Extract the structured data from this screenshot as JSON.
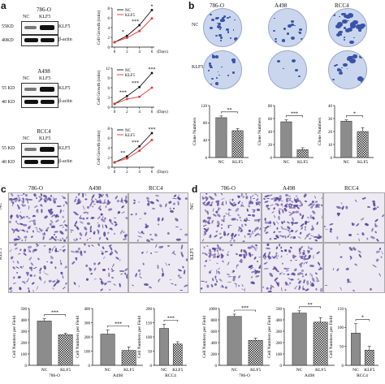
{
  "panels": {
    "a": "a",
    "b": "b",
    "c": "c",
    "d": "d"
  },
  "panel_a": {
    "blots": [
      {
        "title": "786-O",
        "lane1": "NC",
        "lane2": "KLF5",
        "mw_top": "55KD",
        "mw_bot": "40KD",
        "label_top": "KLF5",
        "label_bot": "β-actin"
      },
      {
        "title": "A498",
        "lane1": "NC",
        "lane2": "KLF5",
        "mw_top": "55 KD",
        "mw_bot": "40 KD",
        "label_top": "KLF5",
        "label_bot": "β-actin"
      },
      {
        "title": "RCC4",
        "lane1": "NC",
        "lane2": "KLF5",
        "mw_top": "55 KD",
        "mw_bot": "40 KD",
        "label_top": "KLF5",
        "label_bot": "β-actin"
      }
    ]
  },
  "growth_charts": {
    "ylabel": "Cell Growth (ratio)",
    "xlabel": "(Days)",
    "legend": [
      "NC",
      "KLF5"
    ],
    "x_ticks": [
      "0",
      "2",
      "4",
      "6"
    ]
  },
  "panel_b": {
    "cols": [
      "786-O",
      "A498",
      "RCC4"
    ],
    "rows": [
      "NC",
      "KLF5"
    ],
    "ylabel": "Clone Numbers",
    "xcats": [
      "NC",
      "KLF5"
    ]
  },
  "panel_c": {
    "cols": [
      "786-O",
      "A498",
      "RCC4"
    ],
    "rows": [
      "NC",
      "KLF5"
    ]
  },
  "panel_d": {
    "cols": [
      "786-O",
      "A498",
      "RCC4"
    ],
    "rows": [
      "NC",
      "KLF5"
    ]
  },
  "bottom_charts": {
    "ylabel": "Cell Numbers per Field",
    "xcats": [
      "NC",
      "KLF5"
    ]
  },
  "chart_data": [
    {
      "type": "line",
      "id": "a-786O",
      "x": [
        0,
        2,
        4,
        6
      ],
      "series": [
        {
          "name": "NC",
          "values": [
            1,
            2.3,
            4.5,
            7.6
          ]
        },
        {
          "name": "KLF5",
          "values": [
            1,
            1.9,
            3.3,
            5.9
          ]
        }
      ],
      "ylim": [
        0,
        8
      ],
      "y_ticks": [
        "0",
        "2",
        "4",
        "6",
        "8"
      ],
      "sig": [
        "*",
        "***",
        "*"
      ],
      "ylabel": "Cell Growth (ratio)",
      "xlabel": "(Days)"
    },
    {
      "type": "line",
      "id": "a-A498",
      "x": [
        0,
        2,
        4,
        6
      ],
      "series": [
        {
          "name": "NC",
          "values": [
            1,
            3.4,
            6.2,
            10.5
          ]
        },
        {
          "name": "KLF5",
          "values": [
            1,
            2.5,
            3.2,
            6.0
          ]
        }
      ],
      "ylim": [
        0,
        12
      ],
      "y_ticks": [
        "0",
        "3",
        "6",
        "9",
        "12"
      ],
      "sig": [
        "***",
        "***",
        "***"
      ],
      "ylabel": "Cell Growth (ratio)",
      "xlabel": "(Days)"
    },
    {
      "type": "line",
      "id": "a-RCC4",
      "x": [
        0,
        2,
        4,
        6
      ],
      "series": [
        {
          "name": "NC",
          "values": [
            1,
            2.2,
            4.3,
            7.0
          ]
        },
        {
          "name": "KLF5",
          "values": [
            1,
            1.8,
            3.4,
            5.6
          ]
        }
      ],
      "ylim": [
        0,
        8
      ],
      "y_ticks": [
        "0",
        "2",
        "4",
        "6",
        "8"
      ],
      "sig": [
        "**",
        "***",
        "***"
      ],
      "ylabel": "Cell Growth (ratio)",
      "xlabel": "(Days)"
    },
    {
      "type": "bar",
      "id": "b-786O",
      "categories": [
        "NC",
        "KLF5"
      ],
      "values": [
        92,
        62
      ],
      "errors": [
        4,
        5
      ],
      "ylim": [
        0,
        120
      ],
      "y_ticks": [
        "0",
        "40",
        "80",
        "120"
      ],
      "sig": "**",
      "ylabel": "Clone Numbers"
    },
    {
      "type": "bar",
      "id": "b-A498",
      "categories": [
        "NC",
        "KLF5"
      ],
      "values": [
        55,
        12
      ],
      "errors": [
        3,
        3
      ],
      "ylim": [
        0,
        80
      ],
      "y_ticks": [
        "0",
        "20",
        "40",
        "60",
        "80"
      ],
      "sig": "***",
      "ylabel": "Clone Numbers"
    },
    {
      "type": "bar",
      "id": "b-RCC4",
      "categories": [
        "NC",
        "KLF5"
      ],
      "values": [
        28,
        20
      ],
      "errors": [
        1,
        3
      ],
      "ylim": [
        0,
        40
      ],
      "y_ticks": [
        "0",
        "10",
        "20",
        "30",
        "40"
      ],
      "sig": "*",
      "ylabel": "Clone Numbers"
    },
    {
      "type": "bar",
      "id": "c-786O",
      "categories": [
        "NC",
        "KLF5"
      ],
      "values": [
        390,
        270
      ],
      "errors": [
        20,
        12
      ],
      "ylim": [
        0,
        500
      ],
      "y_ticks": [
        "0",
        "100",
        "200",
        "300",
        "400",
        "500"
      ],
      "sig": "***",
      "ylabel": "Cell Numbers per Field",
      "xlabel": "786-O"
    },
    {
      "type": "bar",
      "id": "c-A498",
      "categories": [
        "NC",
        "KLF5"
      ],
      "values": [
        220,
        105
      ],
      "errors": [
        30,
        25
      ],
      "ylim": [
        0,
        400
      ],
      "y_ticks": [
        "0",
        "100",
        "200",
        "300",
        "400"
      ],
      "sig": "***",
      "ylabel": "Cell Numbers per Field",
      "xlabel": "A498"
    },
    {
      "type": "bar",
      "id": "c-RCC4",
      "categories": [
        "NC",
        "KLF5"
      ],
      "values": [
        130,
        75
      ],
      "errors": [
        15,
        8
      ],
      "ylim": [
        0,
        200
      ],
      "y_ticks": [
        "0",
        "50",
        "100",
        "150",
        "200"
      ],
      "sig": "***",
      "ylabel": "Cell Numbers per Field",
      "xlabel": "RCC4"
    },
    {
      "type": "bar",
      "id": "d-786O",
      "categories": [
        "NC",
        "KLF5"
      ],
      "values": [
        860,
        440
      ],
      "errors": [
        40,
        40
      ],
      "ylim": [
        0,
        1000
      ],
      "y_ticks": [
        "0",
        "200",
        "400",
        "600",
        "800",
        "1000"
      ],
      "sig": "***",
      "ylabel": "Cell Numbers per Field",
      "xlabel": "786-O"
    },
    {
      "type": "bar",
      "id": "d-A498",
      "categories": [
        "NC",
        "KLF5"
      ],
      "values": [
        460,
        380
      ],
      "errors": [
        20,
        40
      ],
      "ylim": [
        0,
        500
      ],
      "y_ticks": [
        "0",
        "100",
        "200",
        "300",
        "400",
        "500"
      ],
      "sig": "**",
      "ylabel": "Cell Numbers per Field",
      "xlabel": "A498"
    },
    {
      "type": "bar",
      "id": "d-RCC4",
      "categories": [
        "NC",
        "KLF5"
      ],
      "values": [
        85,
        40
      ],
      "errors": [
        25,
        10
      ],
      "ylim": [
        0,
        150
      ],
      "y_ticks": [
        "0",
        "50",
        "100",
        "150"
      ],
      "sig": "*",
      "ylabel": "Cell Numbers per Field",
      "xlabel": "RCC4"
    }
  ],
  "colors": {
    "nc_line": "#111111",
    "klf5_line": "#e8322f",
    "bar_nc": "#8c8c8c",
    "dish_bg": "#c9d6ee",
    "dish_colony": "#3a53a8",
    "stain": "#5a4aa0"
  }
}
